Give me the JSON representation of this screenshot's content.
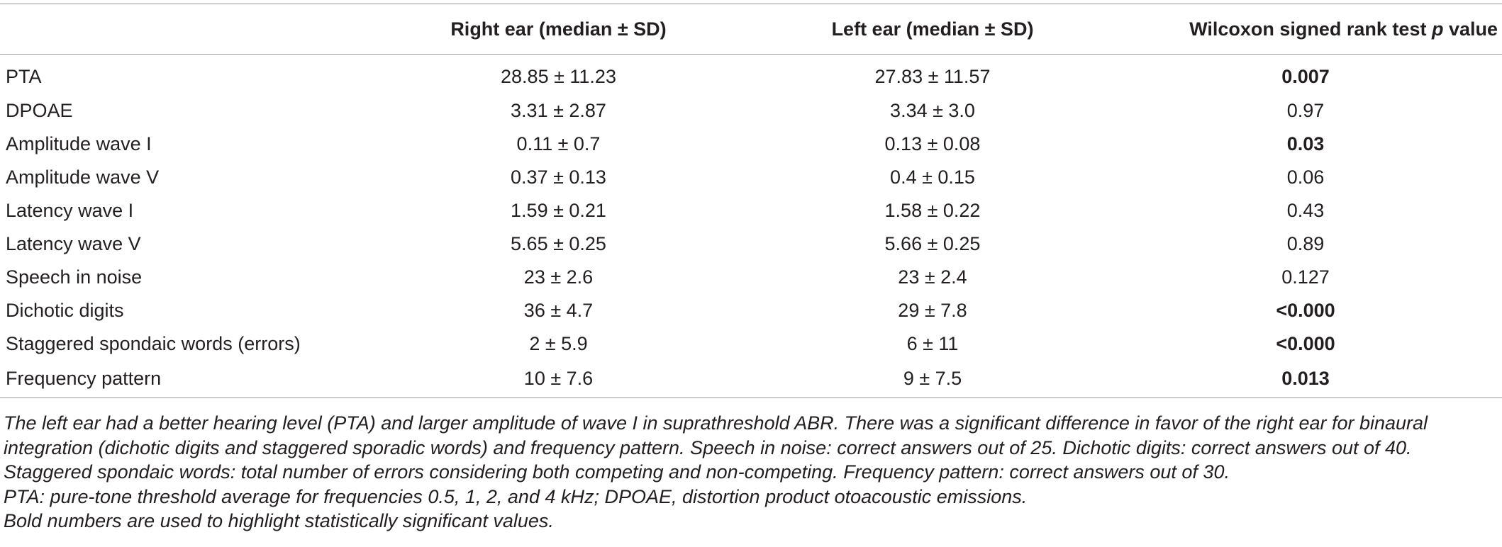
{
  "table": {
    "headers": {
      "label": "",
      "right_ear": "Right ear (median ± SD)",
      "left_ear": "Left ear (median ± SD)",
      "p_value_prefix": "Wilcoxon signed rank test ",
      "p_value_italic": "p",
      "p_value_suffix": " value"
    },
    "rows": [
      {
        "label": "PTA",
        "right": "28.85 ± 11.23",
        "left": "27.83 ± 11.57",
        "p": "0.007",
        "significant": true
      },
      {
        "label": "DPOAE",
        "right": "3.31 ± 2.87",
        "left": "3.34 ± 3.0",
        "p": "0.97",
        "significant": false
      },
      {
        "label": "Amplitude wave I",
        "right": "0.11 ± 0.7",
        "left": "0.13 ± 0.08",
        "p": "0.03",
        "significant": true
      },
      {
        "label": "Amplitude wave V",
        "right": "0.37 ± 0.13",
        "left": "0.4 ± 0.15",
        "p": "0.06",
        "significant": false
      },
      {
        "label": "Latency wave I",
        "right": "1.59 ± 0.21",
        "left": "1.58 ± 0.22",
        "p": "0.43",
        "significant": false
      },
      {
        "label": "Latency wave V",
        "right": "5.65 ± 0.25",
        "left": "5.66 ± 0.25",
        "p": "0.89",
        "significant": false
      },
      {
        "label": "Speech in noise",
        "right": "23 ± 2.6",
        "left": "23 ± 2.4",
        "p": "0.127",
        "significant": false
      },
      {
        "label": "Dichotic digits",
        "right": "36 ± 4.7",
        "left": "29 ± 7.8",
        "p": "<0.000",
        "significant": true
      },
      {
        "label": "Staggered spondaic words (errors)",
        "right": "2 ± 5.9",
        "left": "6 ± 11",
        "p": "<0.000",
        "significant": true
      },
      {
        "label": "Frequency pattern",
        "right": "10 ± 7.6",
        "left": "9 ± 7.5",
        "p": "0.013",
        "significant": true
      }
    ]
  },
  "footnotes": [
    "The left ear had a better hearing level (PTA) and larger amplitude of wave I in suprathreshold ABR. There was a significant difference in favor of the right ear for binaural integration (dichotic digits and staggered sporadic words) and frequency pattern. Speech in noise: correct answers out of 25. Dichotic digits: correct answers out of 40. Staggered spondaic words: total number of errors considering both competing and non-competing. Frequency pattern: correct answers out of 30.",
    "PTA: pure-tone threshold average for frequencies 0.5, 1, 2, and 4 kHz; DPOAE, distortion product otoacoustic emissions.",
    "Bold numbers are used to highlight statistically significant values."
  ]
}
